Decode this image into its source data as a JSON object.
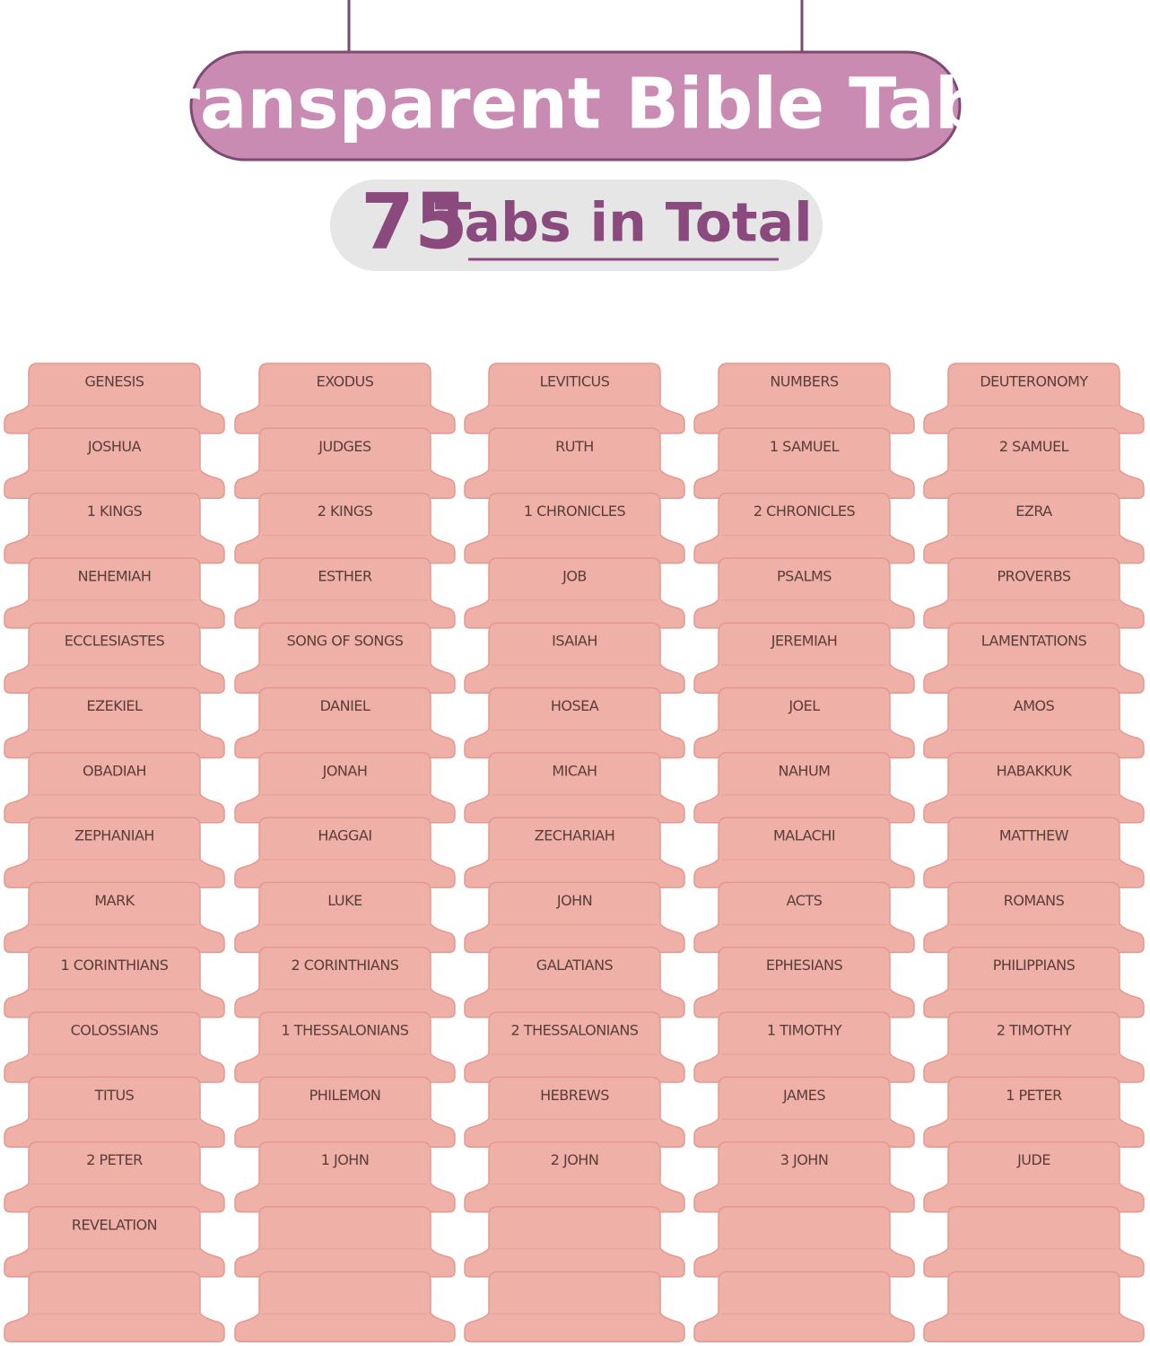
{
  "header": {
    "title": "Transparent Bible Tabs",
    "count": "75",
    "count_label": "Tabs in Total"
  },
  "tabs": [
    "GENESIS",
    "EXODUS",
    "LEVITICUS",
    "NUMBERS",
    "DEUTERONOMY",
    "JOSHUA",
    "JUDGES",
    "RUTH",
    "1 SAMUEL",
    "2 SAMUEL",
    "1 KINGS",
    "2 KINGS",
    "1 CHRONICLES",
    "2 CHRONICLES",
    "EZRA",
    "NEHEMIAH",
    "ESTHER",
    "JOB",
    "PSALMS",
    "PROVERBS",
    "ECCLESIASTES",
    "SONG OF SONGS",
    "ISAIAH",
    "JEREMIAH",
    "LAMENTATIONS",
    "EZEKIEL",
    "DANIEL",
    "HOSEA",
    "JOEL",
    "AMOS",
    "OBADIAH",
    "JONAH",
    "MICAH",
    "NAHUM",
    "HABAKKUK",
    "ZEPHANIAH",
    "HAGGAI",
    "ZECHARIAH",
    "MALACHI",
    "MATTHEW",
    "MARK",
    "LUKE",
    "JOHN",
    "ACTS",
    "ROMANS",
    "1 CORINTHIANS",
    "2 CORINTHIANS",
    "GALATIANS",
    "EPHESIANS",
    "PHILIPPIANS",
    "COLOSSIANS",
    "1 THESSALONIANS",
    "2 THESSALONIANS",
    "1 TIMOTHY",
    "2 TIMOTHY",
    "TITUS",
    "PHILEMON",
    "HEBREWS",
    "JAMES",
    "1 PETER",
    "2 PETER",
    "1 JOHN",
    "2 JOHN",
    "3 JOHN",
    "JUDE",
    "REVELATION"
  ]
}
